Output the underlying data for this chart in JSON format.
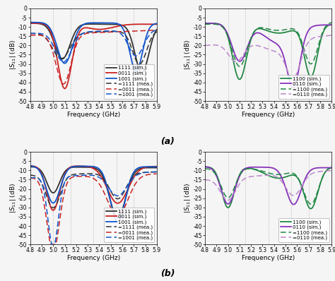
{
  "freq_start": 4.8,
  "freq_end": 5.9,
  "ylim": [
    -50,
    0
  ],
  "yticks": [
    0,
    -5,
    -10,
    -15,
    -20,
    -25,
    -30,
    -35,
    -40,
    -45,
    -50
  ],
  "xticks": [
    4.8,
    4.9,
    5.0,
    5.1,
    5.2,
    5.3,
    5.4,
    5.5,
    5.6,
    5.7,
    5.8,
    5.9
  ],
  "xlabel": "Frequency (GHz)",
  "figure_label_a": "(a)",
  "figure_label_b": "(b)",
  "colors": {
    "black": "#333333",
    "red": "#cc2222",
    "blue": "#1155cc",
    "green": "#228844",
    "purple": "#8833bb",
    "lpurple": "#bb88cc",
    "lgray": "#bbbbbb"
  },
  "vline_positions": [
    5.0,
    5.15,
    5.35,
    5.55,
    5.7
  ],
  "vline_color": "#bbbbbb",
  "vline_ls": "dotted",
  "vline_lw": 0.8,
  "background": "#f5f5f5",
  "fontsize_tick": 5.5,
  "fontsize_label": 6.5,
  "fontsize_legend": 5.0,
  "fontsize_fig_label": 9
}
